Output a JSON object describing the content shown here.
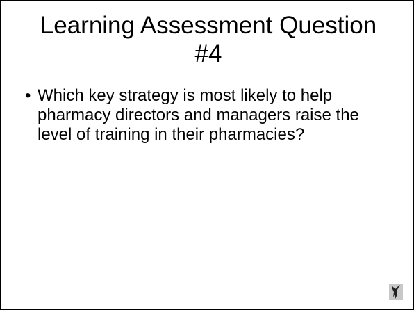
{
  "title": "Learning Assessment Question #4",
  "bullets": [
    "Which key strategy is most likely to help pharmacy directors and managers raise the level of training in their pharmacies?"
  ]
}
